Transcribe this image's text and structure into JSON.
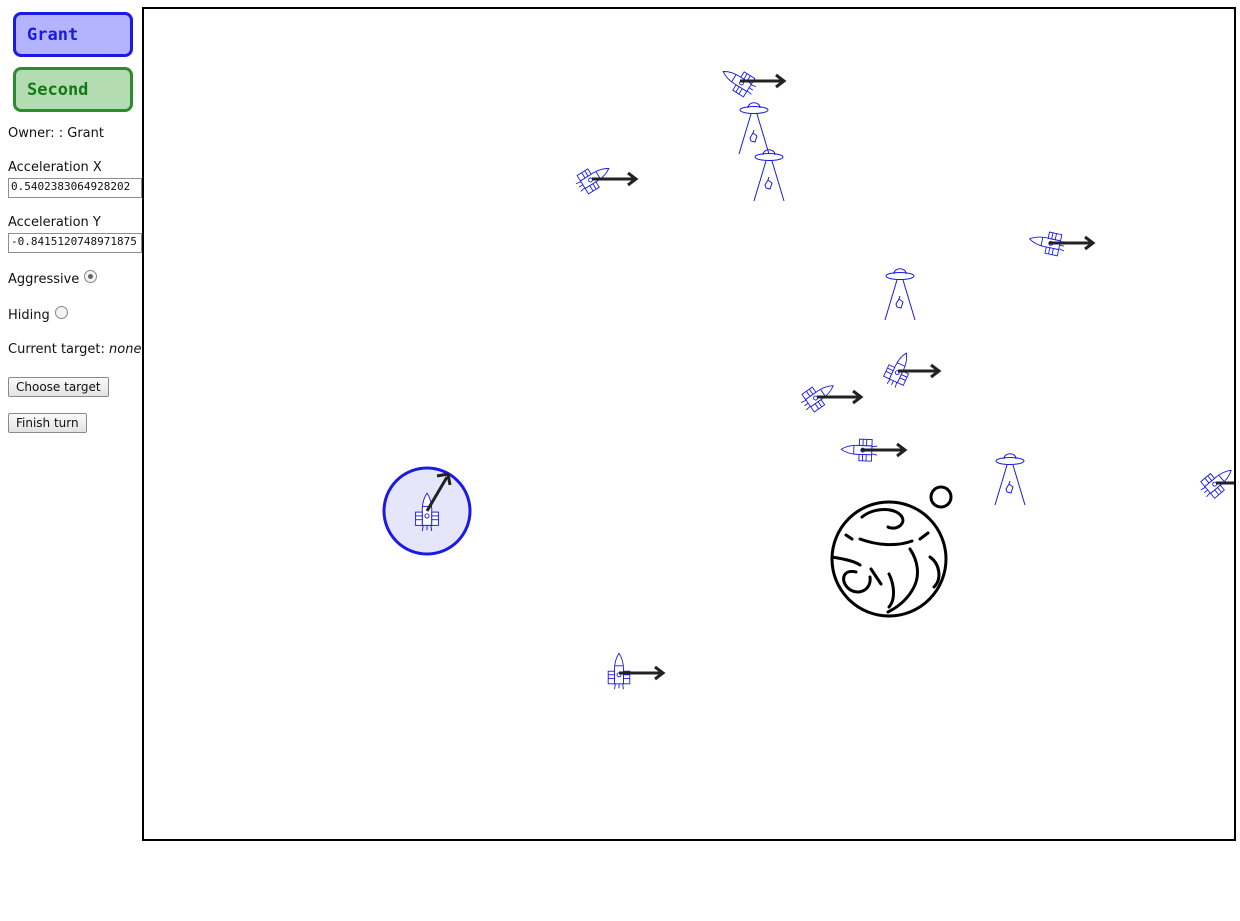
{
  "players": [
    {
      "name": "Grant",
      "color": "#1a1ae6"
    },
    {
      "name": "Second",
      "color": "#137a13"
    }
  ],
  "panel": {
    "owner_label": "Owner: : Grant",
    "accel_x_label": "Acceleration X",
    "accel_x_value": "0.5402383064928202",
    "accel_y_label": "Acceleration Y",
    "accel_y_value": "-0.8415120748971875",
    "aggressive_label": "Aggressive",
    "aggressive_checked": true,
    "hiding_label": "Hiding",
    "hiding_checked": false,
    "target_label": "Current target:",
    "target_value": "none",
    "choose_target_label": "Choose target",
    "finish_turn_label": "Finish turn"
  },
  "board": {
    "ship_color": "#1a1ae6",
    "arrow_color": "#222222",
    "planet_color": "#000000",
    "ship_icon": "rocket-icon",
    "ufo_icon": "ufo-icon",
    "planet_icon": "planet-icon",
    "moon_icon": "moon-icon"
  }
}
